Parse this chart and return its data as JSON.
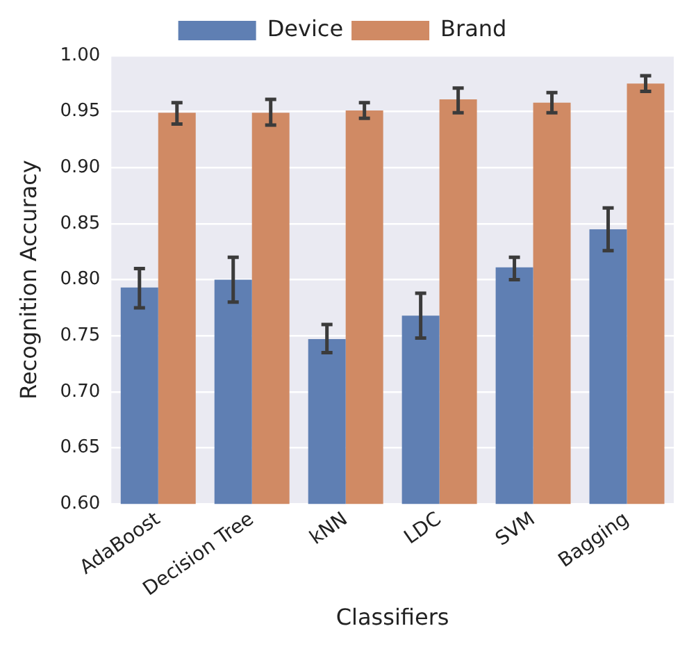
{
  "chart_data": {
    "type": "bar",
    "xlabel": "Classifiers",
    "ylabel": "Recognition Accuracy",
    "categories": [
      "AdaBoost",
      "Decision Tree",
      "kNN",
      "LDC",
      "SVM",
      "Bagging"
    ],
    "series": [
      {
        "name": "Device",
        "color": "#5f7fb3",
        "values": [
          0.793,
          0.8,
          0.747,
          0.768,
          0.811,
          0.845
        ],
        "errors": [
          [
            0.775,
            0.81
          ],
          [
            0.78,
            0.82
          ],
          [
            0.735,
            0.76
          ],
          [
            0.748,
            0.788
          ],
          [
            0.8,
            0.82
          ],
          [
            0.826,
            0.864
          ]
        ]
      },
      {
        "name": "Brand",
        "color": "#d08a64",
        "values": [
          0.949,
          0.949,
          0.951,
          0.961,
          0.958,
          0.975
        ],
        "errors": [
          [
            0.939,
            0.958
          ],
          [
            0.938,
            0.961
          ],
          [
            0.944,
            0.958
          ],
          [
            0.949,
            0.971
          ],
          [
            0.949,
            0.967
          ],
          [
            0.968,
            0.982
          ]
        ]
      }
    ],
    "ylim": [
      0.6,
      1.0
    ],
    "yticks": [
      {
        "value": 0.6,
        "label": "0.60"
      },
      {
        "value": 0.65,
        "label": "0.65"
      },
      {
        "value": 0.7,
        "label": "0.70"
      },
      {
        "value": 0.75,
        "label": "0.75"
      },
      {
        "value": 0.8,
        "label": "0.80"
      },
      {
        "value": 0.85,
        "label": "0.85"
      },
      {
        "value": 0.9,
        "label": "0.90"
      },
      {
        "value": 0.95,
        "label": "0.95"
      },
      {
        "value": 1.0,
        "label": "1.00"
      }
    ],
    "grid": "y",
    "legend": "top"
  }
}
